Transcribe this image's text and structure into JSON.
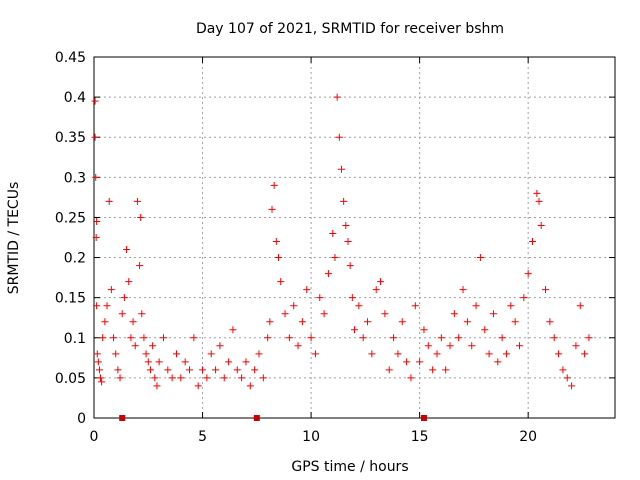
{
  "chart_data": {
    "type": "scatter",
    "title": "Day 107 of 2021, SRMTID for receiver bshm",
    "xlabel": "GPS time / hours",
    "ylabel": "SRMTID / TECUs",
    "xlim": [
      0,
      24
    ],
    "ylim": [
      0,
      0.45
    ],
    "x_ticks": [
      0,
      5,
      10,
      15,
      20
    ],
    "x_tick_labels": [
      "0",
      "5",
      "10",
      "15",
      "20"
    ],
    "y_ticks": [
      0,
      0.05,
      0.1,
      0.15,
      0.2,
      0.25,
      0.3,
      0.35,
      0.4,
      0.45
    ],
    "y_tick_labels": [
      "0",
      "0.05",
      "0.1",
      "0.15",
      "0.2",
      "0.25",
      "0.3",
      "0.35",
      "0.4",
      "0.45"
    ],
    "grid": true,
    "marker": "plus",
    "series_color": "#ff0000",
    "baseline_color": "#cc0000",
    "series": [
      {
        "name": "SRMTID",
        "x": [
          0.05,
          0.05,
          0.08,
          0.1,
          0.12,
          0.12,
          0.15,
          0.2,
          0.25,
          0.3,
          0.35,
          0.4,
          0.5,
          0.6,
          0.7,
          0.8,
          0.9,
          1.0,
          1.1,
          1.2,
          1.3,
          1.4,
          1.5,
          1.6,
          1.7,
          1.8,
          1.9,
          2.0,
          2.1,
          2.15,
          2.2,
          2.3,
          2.4,
          2.5,
          2.6,
          2.7,
          2.8,
          2.9,
          3.0,
          3.2,
          3.4,
          3.6,
          3.8,
          4.0,
          4.2,
          4.4,
          4.6,
          4.8,
          5.0,
          5.2,
          5.4,
          5.6,
          5.8,
          6.0,
          6.2,
          6.4,
          6.6,
          6.8,
          7.0,
          7.2,
          7.4,
          7.6,
          7.8,
          8.0,
          8.1,
          8.2,
          8.3,
          8.4,
          8.5,
          8.6,
          8.8,
          9.0,
          9.2,
          9.4,
          9.6,
          9.8,
          10.0,
          10.2,
          10.4,
          10.6,
          10.8,
          11.0,
          11.1,
          11.2,
          11.3,
          11.4,
          11.5,
          11.6,
          11.7,
          11.8,
          11.9,
          12.0,
          12.2,
          12.4,
          12.6,
          12.8,
          13.0,
          13.2,
          13.4,
          13.6,
          13.8,
          14.0,
          14.2,
          14.4,
          14.6,
          14.8,
          15.0,
          15.2,
          15.4,
          15.6,
          15.8,
          16.0,
          16.2,
          16.4,
          16.6,
          16.8,
          17.0,
          17.2,
          17.4,
          17.6,
          17.8,
          18.0,
          18.2,
          18.4,
          18.6,
          18.8,
          19.0,
          19.2,
          19.4,
          19.6,
          19.8,
          20.0,
          20.2,
          20.4,
          20.5,
          20.6,
          20.8,
          21.0,
          21.2,
          21.4,
          21.6,
          21.8,
          22.0,
          22.2,
          22.4,
          22.6,
          22.8
        ],
        "values": [
          0.395,
          0.35,
          0.3,
          0.225,
          0.245,
          0.14,
          0.08,
          0.07,
          0.06,
          0.05,
          0.045,
          0.1,
          0.12,
          0.14,
          0.27,
          0.16,
          0.1,
          0.08,
          0.06,
          0.05,
          0.13,
          0.15,
          0.21,
          0.17,
          0.1,
          0.12,
          0.09,
          0.27,
          0.19,
          0.25,
          0.13,
          0.1,
          0.08,
          0.07,
          0.06,
          0.09,
          0.05,
          0.04,
          0.07,
          0.1,
          0.06,
          0.05,
          0.08,
          0.05,
          0.07,
          0.06,
          0.1,
          0.04,
          0.06,
          0.05,
          0.08,
          0.06,
          0.09,
          0.05,
          0.07,
          0.11,
          0.06,
          0.05,
          0.07,
          0.04,
          0.06,
          0.08,
          0.05,
          0.1,
          0.12,
          0.26,
          0.29,
          0.22,
          0.2,
          0.17,
          0.13,
          0.1,
          0.14,
          0.09,
          0.12,
          0.16,
          0.1,
          0.08,
          0.15,
          0.13,
          0.18,
          0.23,
          0.2,
          0.4,
          0.35,
          0.31,
          0.27,
          0.24,
          0.22,
          0.19,
          0.15,
          0.11,
          0.14,
          0.1,
          0.12,
          0.08,
          0.16,
          0.17,
          0.13,
          0.06,
          0.1,
          0.08,
          0.12,
          0.07,
          0.05,
          0.14,
          0.07,
          0.11,
          0.09,
          0.06,
          0.08,
          0.1,
          0.06,
          0.09,
          0.13,
          0.1,
          0.16,
          0.12,
          0.09,
          0.14,
          0.2,
          0.11,
          0.08,
          0.13,
          0.07,
          0.1,
          0.08,
          0.14,
          0.12,
          0.09,
          0.15,
          0.18,
          0.22,
          0.28,
          0.27,
          0.24,
          0.16,
          0.12,
          0.1,
          0.08,
          0.06,
          0.05,
          0.04,
          0.09,
          0.14,
          0.08,
          0.1
        ]
      }
    ],
    "baseline_markers_x": [
      1.3,
      7.5,
      15.2
    ]
  }
}
